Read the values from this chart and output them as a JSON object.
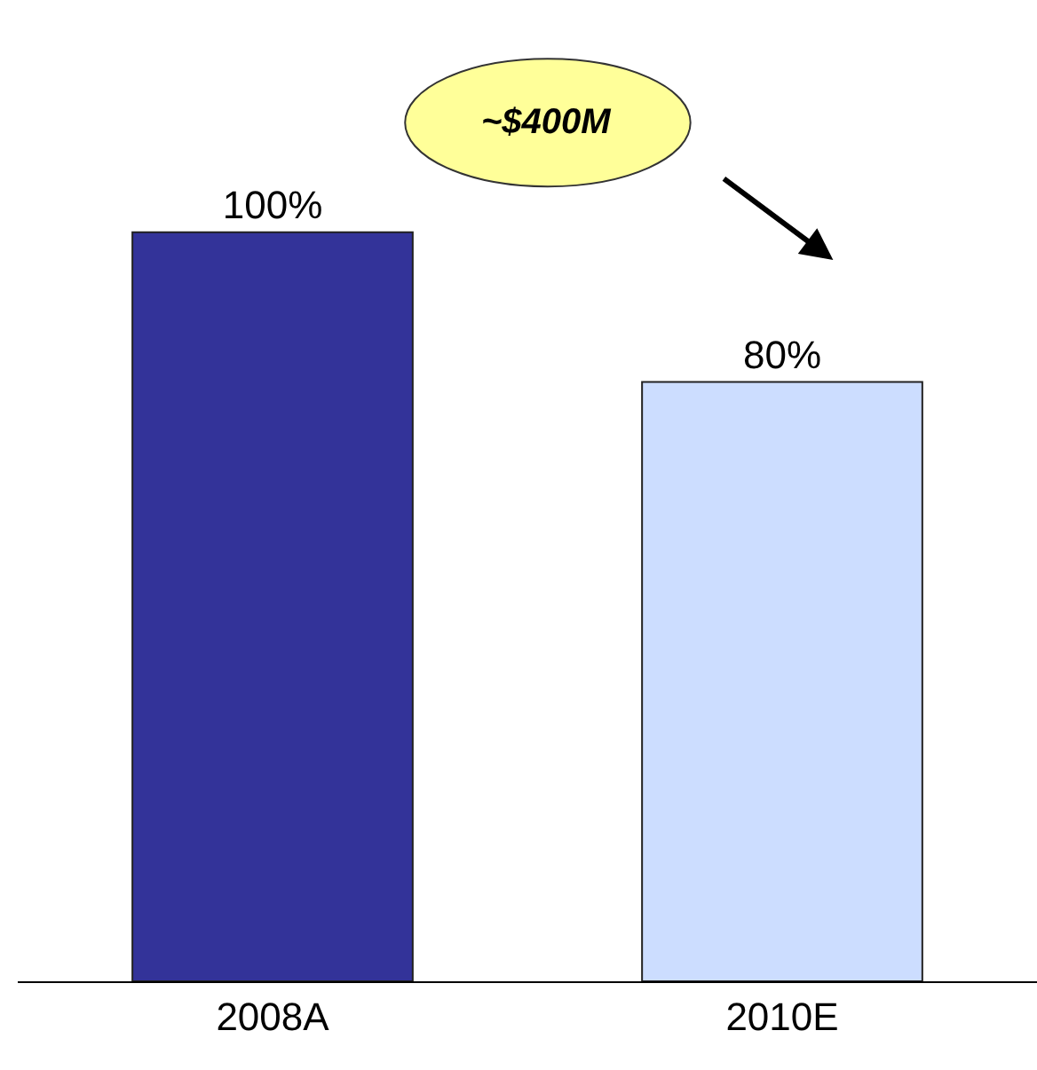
{
  "chart_data": {
    "type": "bar",
    "categories": [
      "2008A",
      "2010E"
    ],
    "values": [
      100,
      80
    ],
    "colors": [
      "#333399",
      "#ccddff"
    ],
    "value_labels": [
      "100%",
      "80%"
    ],
    "annotations": [
      "~$400M"
    ]
  }
}
